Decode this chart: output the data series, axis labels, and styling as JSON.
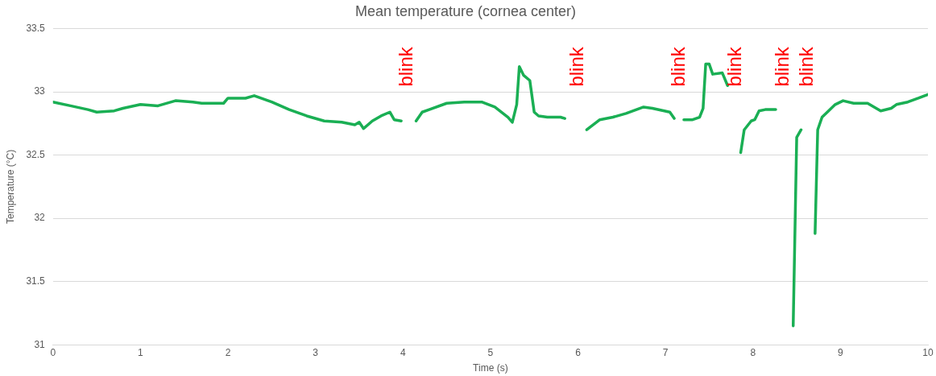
{
  "chart_data": {
    "type": "line",
    "title": "Mean temperature (cornea center)",
    "xlabel": "Time (s)",
    "ylabel": "Temperature (°C)",
    "xlim": [
      0,
      10
    ],
    "xticks": [
      0,
      1,
      2,
      3,
      4,
      5,
      6,
      7,
      8,
      9,
      10
    ],
    "ylim": [
      31,
      33.5
    ],
    "yticks": [
      31,
      31.5,
      32,
      32.5,
      33,
      33.5
    ],
    "grid": "y",
    "legend": false,
    "marker": "none",
    "line_style": "solid",
    "annotations": [
      "blink",
      "blink",
      "blink",
      "blink",
      "blink",
      "blink"
    ],
    "series": [
      {
        "color": "#1aaf54",
        "x": [
          0,
          0.2,
          0.4,
          0.5,
          0.7,
          0.8,
          1.0,
          1.2,
          1.4,
          1.6,
          1.7,
          1.95,
          2.0,
          2.2,
          2.3,
          2.5,
          2.7,
          2.9,
          3.1,
          3.3,
          3.45,
          3.5,
          3.55,
          3.65,
          3.75,
          3.85,
          3.9,
          3.98,
          4.05,
          4.15,
          4.22,
          4.3,
          4.5,
          4.7,
          4.9,
          5.05,
          5.2,
          5.25,
          5.3,
          5.33,
          5.38,
          5.45,
          5.5,
          5.55,
          5.65,
          5.8,
          5.85,
          6.0,
          6.1,
          6.25,
          6.4,
          6.55,
          6.75,
          6.85,
          7.05,
          7.1,
          7.16,
          7.21,
          7.31,
          7.39,
          7.43,
          7.46,
          7.5,
          7.54,
          7.65,
          7.71,
          7.8,
          7.86,
          7.9,
          7.98,
          8.02,
          8.07,
          8.14,
          8.26,
          8.35,
          8.46,
          8.5,
          8.55,
          8.62,
          8.71,
          8.74,
          8.79,
          8.85,
          8.94,
          9.03,
          9.15,
          9.31,
          9.46,
          9.58,
          9.64,
          9.77,
          9.89,
          10.0
        ],
        "values": [
          32.92,
          32.89,
          32.86,
          32.84,
          32.85,
          32.87,
          32.9,
          32.89,
          32.93,
          32.92,
          32.91,
          32.91,
          32.95,
          32.95,
          32.97,
          32.92,
          32.86,
          32.81,
          32.77,
          32.76,
          32.74,
          32.76,
          32.71,
          32.77,
          32.81,
          32.84,
          32.78,
          32.77,
          null,
          32.77,
          32.84,
          32.86,
          32.91,
          32.92,
          32.92,
          32.88,
          32.8,
          32.76,
          32.9,
          33.2,
          33.13,
          33.09,
          32.84,
          32.81,
          32.8,
          32.8,
          32.79,
          null,
          32.7,
          32.78,
          32.8,
          32.83,
          32.88,
          32.87,
          32.84,
          32.79,
          null,
          32.78,
          32.78,
          32.8,
          32.87,
          33.22,
          33.22,
          33.14,
          33.15,
          33.05,
          null,
          32.52,
          32.7,
          32.77,
          32.78,
          32.85,
          32.86,
          32.86,
          null,
          31.15,
          32.64,
          32.7,
          null,
          31.88,
          32.7,
          32.8,
          32.84,
          32.9,
          32.93,
          32.91,
          32.91,
          32.85,
          32.87,
          32.9,
          32.92,
          32.95,
          32.98
        ]
      }
    ]
  }
}
